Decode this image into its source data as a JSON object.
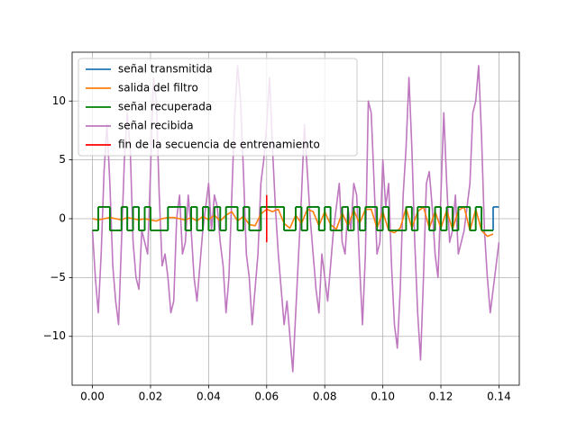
{
  "chart_data": {
    "type": "line",
    "xlim": [
      -0.007,
      0.147
    ],
    "ylim": [
      -14.15,
      14.15
    ],
    "xticks": [
      {
        "value": 0,
        "label": "0.00"
      },
      {
        "value": 0.02,
        "label": "0.02"
      },
      {
        "value": 0.04,
        "label": "0.04"
      },
      {
        "value": 0.06,
        "label": "0.06"
      },
      {
        "value": 0.08,
        "label": "0.08"
      },
      {
        "value": 0.1,
        "label": "0.10"
      },
      {
        "value": 0.12,
        "label": "0.12"
      },
      {
        "value": 0.14,
        "label": "0.14"
      }
    ],
    "yticks": [
      {
        "value": -10,
        "label": "−10"
      },
      {
        "value": -5,
        "label": "−5"
      },
      0,
      5,
      10
    ],
    "grid": true,
    "legend": "upper left",
    "series": [
      {
        "name": "señal transmitida",
        "color": "#1f77b4",
        "drawstyle": "steps-post",
        "x": [
          0,
          0.002,
          0.004,
          0.006,
          0.008,
          0.01,
          0.012,
          0.014,
          0.016,
          0.018,
          0.02,
          0.022,
          0.024,
          0.026,
          0.028,
          0.03,
          0.032,
          0.034,
          0.036,
          0.038,
          0.04,
          0.042,
          0.044,
          0.046,
          0.048,
          0.05,
          0.052,
          0.054,
          0.056,
          0.058,
          0.06,
          0.062,
          0.064,
          0.066,
          0.068,
          0.07,
          0.072,
          0.074,
          0.076,
          0.078,
          0.08,
          0.082,
          0.084,
          0.086,
          0.088,
          0.09,
          0.092,
          0.094,
          0.096,
          0.098,
          0.1,
          0.102,
          0.104,
          0.106,
          0.108,
          0.11,
          0.112,
          0.114,
          0.116,
          0.118,
          0.12,
          0.122,
          0.124,
          0.126,
          0.128,
          0.13,
          0.132,
          0.134,
          0.136,
          0.138,
          0.14
        ],
        "values": [
          -1,
          1,
          1,
          -1,
          -1,
          1,
          -1,
          1,
          -1,
          1,
          -1,
          -1,
          -1,
          1,
          1,
          1,
          -1,
          1,
          -1,
          1,
          -1,
          1,
          -1,
          1,
          1,
          -1,
          1,
          -1,
          -1,
          1,
          1,
          1,
          1,
          -1,
          -1,
          1,
          -1,
          1,
          1,
          -1,
          1,
          -1,
          -1,
          1,
          -1,
          1,
          -1,
          1,
          1,
          -1,
          1,
          -1,
          -1,
          -1,
          1,
          -1,
          1,
          1,
          -1,
          1,
          -1,
          1,
          -1,
          1,
          1,
          -1,
          1,
          -1,
          -1,
          1,
          1
        ]
      },
      {
        "name": "salida del filtro",
        "color": "#ff7f0e",
        "drawstyle": "default",
        "x": [
          0,
          0.002,
          0.004,
          0.006,
          0.008,
          0.01,
          0.012,
          0.014,
          0.016,
          0.018,
          0.02,
          0.022,
          0.024,
          0.026,
          0.028,
          0.03,
          0.032,
          0.034,
          0.036,
          0.038,
          0.04,
          0.042,
          0.044,
          0.046,
          0.048,
          0.05,
          0.052,
          0.054,
          0.056,
          0.058,
          0.06,
          0.062,
          0.064,
          0.066,
          0.068,
          0.07,
          0.072,
          0.074,
          0.076,
          0.078,
          0.08,
          0.082,
          0.084,
          0.086,
          0.088,
          0.09,
          0.092,
          0.094,
          0.096,
          0.098,
          0.1,
          0.102,
          0.104,
          0.106,
          0.108,
          0.11,
          0.112,
          0.114,
          0.116,
          0.118,
          0.12,
          0.122,
          0.124,
          0.126,
          0.128,
          0.13,
          0.132,
          0.134,
          0.136,
          0.138
        ],
        "values": [
          0,
          -0.1,
          0,
          0.1,
          0,
          -0.1,
          0.1,
          0,
          -0.1,
          0,
          -0.1,
          -0.2,
          0,
          0.1,
          0.1,
          0,
          -0.1,
          0.1,
          -0.2,
          0.2,
          -0.1,
          0.3,
          -0.2,
          0.3,
          0.6,
          -0.2,
          0.2,
          -0.5,
          -0.6,
          0.4,
          0.8,
          0.6,
          0.8,
          -0.4,
          -0.8,
          0.3,
          -0.4,
          0.8,
          0.6,
          -0.6,
          0.6,
          -0.5,
          -0.9,
          0.5,
          -0.6,
          0.7,
          -0.4,
          0.8,
          0.8,
          -0.8,
          0.6,
          -1,
          -1.2,
          -0.8,
          0.9,
          -0.8,
          0.6,
          1,
          -0.8,
          0.6,
          -0.8,
          0.7,
          -0.9,
          0.7,
          1,
          -1,
          0.8,
          -1,
          -1.5,
          -1.3
        ]
      },
      {
        "name": "señal recuperada",
        "color": "#008000",
        "drawstyle": "steps-post",
        "x": [
          0,
          0.002,
          0.004,
          0.006,
          0.008,
          0.01,
          0.012,
          0.014,
          0.016,
          0.018,
          0.02,
          0.022,
          0.024,
          0.026,
          0.028,
          0.03,
          0.032,
          0.034,
          0.036,
          0.038,
          0.04,
          0.042,
          0.044,
          0.046,
          0.048,
          0.05,
          0.052,
          0.054,
          0.056,
          0.058,
          0.06,
          0.062,
          0.064,
          0.066,
          0.068,
          0.07,
          0.072,
          0.074,
          0.076,
          0.078,
          0.08,
          0.082,
          0.084,
          0.086,
          0.088,
          0.09,
          0.092,
          0.094,
          0.096,
          0.098,
          0.1,
          0.102,
          0.104,
          0.106,
          0.108,
          0.11,
          0.112,
          0.114,
          0.116,
          0.118,
          0.12,
          0.122,
          0.124,
          0.126,
          0.128,
          0.13,
          0.132,
          0.134,
          0.136,
          0.138
        ],
        "values": [
          -1,
          1,
          1,
          -1,
          -1,
          1,
          -1,
          1,
          -1,
          1,
          -1,
          -1,
          -1,
          1,
          1,
          1,
          -1,
          1,
          -1,
          1,
          -1,
          1,
          -1,
          1,
          1,
          -1,
          1,
          -1,
          -1,
          1,
          1,
          1,
          1,
          -1,
          -1,
          1,
          -1,
          1,
          1,
          -1,
          1,
          -1,
          -1,
          1,
          -1,
          1,
          -1,
          1,
          1,
          -1,
          1,
          -1,
          -1,
          -1,
          1,
          -1,
          1,
          1,
          -1,
          1,
          -1,
          1,
          -1,
          1,
          1,
          -1,
          1,
          -1,
          -1,
          -1
        ]
      },
      {
        "name": "señal recibida",
        "color": "#bf77bf",
        "drawstyle": "default",
        "x": [
          0,
          0.001,
          0.002,
          0.003,
          0.004,
          0.005,
          0.006,
          0.007,
          0.008,
          0.009,
          0.01,
          0.011,
          0.012,
          0.013,
          0.014,
          0.015,
          0.016,
          0.017,
          0.018,
          0.019,
          0.02,
          0.021,
          0.022,
          0.023,
          0.024,
          0.025,
          0.026,
          0.027,
          0.028,
          0.029,
          0.03,
          0.031,
          0.032,
          0.033,
          0.034,
          0.035,
          0.036,
          0.037,
          0.038,
          0.039,
          0.04,
          0.041,
          0.042,
          0.043,
          0.044,
          0.045,
          0.046,
          0.047,
          0.048,
          0.049,
          0.05,
          0.051,
          0.052,
          0.053,
          0.054,
          0.055,
          0.056,
          0.057,
          0.058,
          0.059,
          0.06,
          0.061,
          0.062,
          0.063,
          0.064,
          0.065,
          0.066,
          0.067,
          0.068,
          0.069,
          0.07,
          0.071,
          0.072,
          0.073,
          0.074,
          0.075,
          0.076,
          0.077,
          0.078,
          0.079,
          0.08,
          0.081,
          0.082,
          0.083,
          0.084,
          0.085,
          0.086,
          0.087,
          0.088,
          0.089,
          0.09,
          0.091,
          0.092,
          0.093,
          0.094,
          0.095,
          0.096,
          0.097,
          0.098,
          0.099,
          0.1,
          0.101,
          0.102,
          0.103,
          0.104,
          0.105,
          0.106,
          0.107,
          0.108,
          0.109,
          0.11,
          0.111,
          0.112,
          0.113,
          0.114,
          0.115,
          0.116,
          0.117,
          0.118,
          0.119,
          0.12,
          0.121,
          0.122,
          0.123,
          0.124,
          0.125,
          0.126,
          0.127,
          0.128,
          0.129,
          0.13,
          0.131,
          0.132,
          0.133,
          0.134,
          0.135,
          0.136,
          0.137,
          0.138,
          0.139,
          0.14
        ],
        "values": [
          -1,
          -5,
          -8,
          -3,
          4,
          8,
          3,
          -4,
          -7,
          -9,
          -2,
          5,
          9,
          6,
          -2,
          -5,
          -6,
          -1,
          -2,
          -3,
          4,
          12,
          10,
          2,
          -4,
          -3,
          -5,
          -8,
          -7,
          0,
          2,
          -3,
          -2,
          2,
          -1,
          -5,
          -7,
          -4,
          -1,
          1,
          3,
          -1,
          2,
          1,
          -2,
          -4,
          -8,
          -5,
          2,
          9,
          13,
          10,
          4,
          -3,
          -5,
          -9,
          -6,
          -3,
          3,
          5,
          8,
          12,
          6,
          1,
          -3,
          -6,
          -9,
          -7,
          -10,
          -13,
          -8,
          -3,
          2,
          8,
          4,
          0,
          -3,
          -6,
          -8,
          -3,
          -5,
          -7,
          -4,
          -1,
          1,
          3,
          -2,
          -3,
          1,
          -1,
          3,
          2,
          -4,
          -9,
          -3,
          10,
          9,
          3,
          -3,
          -2,
          5,
          1,
          3,
          -4,
          -9,
          -11,
          -6,
          2,
          6,
          12,
          6,
          -2,
          -8,
          -12,
          -5,
          3,
          4,
          1,
          -3,
          -5,
          2,
          9,
          3,
          -2,
          -1,
          2,
          -3,
          -2,
          -1,
          1,
          3,
          9,
          10,
          13,
          7,
          -1,
          -5,
          -8,
          -6,
          -4,
          -2
        ]
      },
      {
        "name": "fin de la secuencia de entrenamiento",
        "color": "#ff0000",
        "drawstyle": "default",
        "x": [
          0.06,
          0.06
        ],
        "values": [
          -2,
          2
        ]
      }
    ]
  }
}
